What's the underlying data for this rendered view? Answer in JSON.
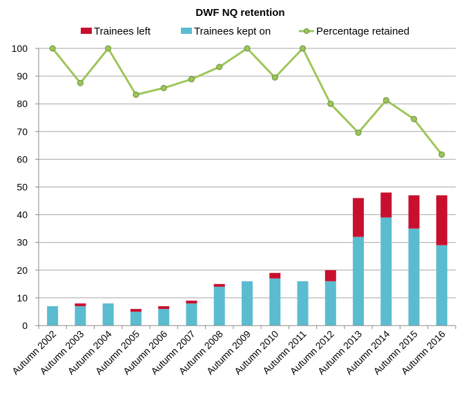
{
  "chart_data": {
    "type": "bar",
    "title": "DWF NQ retention",
    "categories": [
      "Autumn 2002",
      "Autumn 2003",
      "Autumn 2004",
      "Autumn 2005",
      "Autumn 2006",
      "Autumn 2007",
      "Autumn 2008",
      "Autumn 2009",
      "Autumn 2010",
      "Autumn 2011",
      "Autumn 2012",
      "Autumn 2013",
      "Autumn 2014",
      "Autumn 2015",
      "Autumn 2016"
    ],
    "series": [
      {
        "name": "Trainees left",
        "kind": "stacked-bar",
        "color": "#c8102e",
        "values": [
          0,
          1,
          0,
          1,
          1,
          1,
          1,
          0,
          2,
          0,
          4,
          14,
          9,
          12,
          18
        ]
      },
      {
        "name": "Trainees kept on",
        "kind": "stacked-bar",
        "color": "#5bbcd0",
        "values": [
          7,
          7,
          8,
          5,
          6,
          8,
          14,
          16,
          17,
          16,
          16,
          32,
          39,
          35,
          29
        ]
      },
      {
        "name": "Percentage retained",
        "kind": "line",
        "color": "#9dc65a",
        "values": [
          100,
          87.5,
          100,
          83.3,
          85.7,
          88.9,
          93.3,
          100,
          89.5,
          100,
          80,
          69.6,
          81.3,
          74.5,
          61.7
        ]
      }
    ],
    "ylim": [
      0,
      100
    ],
    "yticks": [
      0,
      10,
      20,
      30,
      40,
      50,
      60,
      70,
      80,
      90,
      100
    ],
    "xlabel": "",
    "ylabel": "",
    "grid": true,
    "legend_position": "top"
  }
}
